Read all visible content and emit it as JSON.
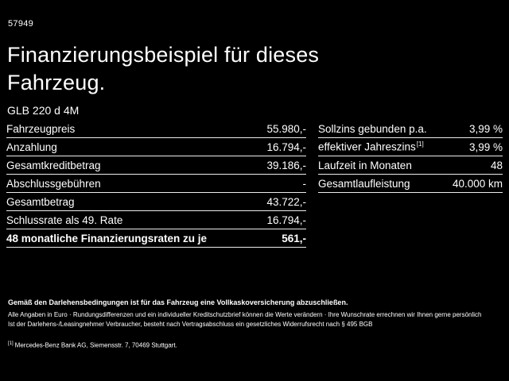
{
  "header": {
    "code": "57949",
    "title": "Finanzierungsbeispiel für dieses Fahrzeug.",
    "model": "GLB 220 d 4M"
  },
  "finance_table": {
    "rows": [
      {
        "label": "Fahrzeugpreis",
        "value": "55.980,-"
      },
      {
        "label": "Anzahlung",
        "value": "16.794,-"
      },
      {
        "label": "Gesamtkreditbetrag",
        "value": "39.186,-"
      },
      {
        "label": "Abschlussgebühren",
        "value": "-"
      },
      {
        "label": "Gesamtbetrag",
        "value": "43.722,-"
      },
      {
        "label": "Schlussrate als 49. Rate",
        "value": "16.794,-"
      },
      {
        "label": "48 monatliche Finanzierungsraten zu je",
        "value": "561,-"
      }
    ]
  },
  "conditions_table": {
    "rows": [
      {
        "label": "Sollzins gebunden p.a.",
        "sup": "",
        "value": "3,99 %"
      },
      {
        "label": "effektiver Jahreszins",
        "sup": "[1]",
        "value": "3,99 %"
      },
      {
        "label": "Laufzeit in Monaten",
        "sup": "",
        "value": "48"
      },
      {
        "label": "Gesamtlaufleistung",
        "sup": "",
        "value": "40.000 km"
      }
    ]
  },
  "footer": {
    "line1": "Gemäß den Darlehensbedingungen ist für das Fahrzeug eine Vollkaskoversicherung abzuschließen.",
    "line2": "Alle Angaben in Euro · Rundungsdifferenzen und ein individueller Kreditschutzbrief können die Werte verändern · Ihre Wunschrate errechnen wir Ihnen gerne persönlich",
    "line3": "Ist der Darlehens-/Leasingnehmer Verbraucher, besteht nach Vertragsabschluss ein gesetzliches Widerrufsrecht nach § 495 BGB",
    "footnote_marker": "[1]",
    "footnote": "Mercedes-Benz Bank AG, Siemensstr. 7, 70469 Stuttgart."
  },
  "colors": {
    "background": "#000000",
    "text": "#ffffff",
    "divider": "#ededed"
  }
}
